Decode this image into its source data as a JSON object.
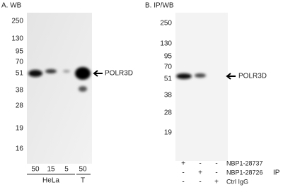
{
  "panel_a": {
    "title": "A. WB",
    "markers": [
      "250",
      "130",
      "95",
      "70",
      "51",
      "38",
      "28",
      "19",
      "16"
    ],
    "band_label": "POLR3D",
    "lanes": [
      "50",
      "15",
      "5",
      "50"
    ],
    "cell_lines": [
      "HeLa",
      "T"
    ]
  },
  "panel_b": {
    "title": "B. IP/WB",
    "markers": [
      "250",
      "130",
      "95",
      "70",
      "51",
      "38",
      "28",
      "19"
    ],
    "band_label": "POLR3D",
    "rows": [
      {
        "signs": [
          "+",
          "-",
          "-"
        ],
        "label": "NBP1-28737"
      },
      {
        "signs": [
          "-",
          "+",
          "-"
        ],
        "label": "NBP1-28726"
      },
      {
        "signs": [
          "-",
          "-",
          "+"
        ],
        "label": "Ctrl IgG"
      }
    ],
    "group_label": "IP"
  }
}
